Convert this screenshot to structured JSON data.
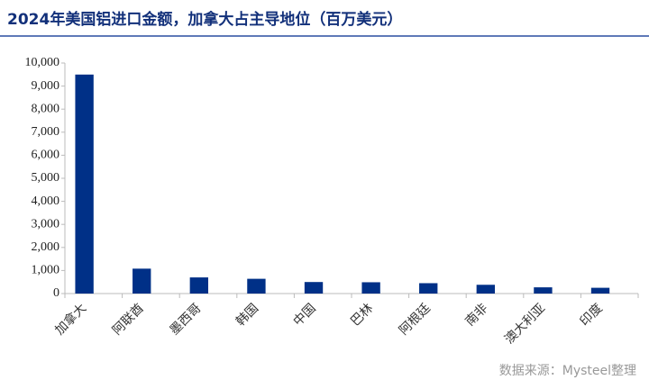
{
  "chart_data": {
    "type": "bar",
    "title": "2024年美国铝进口金额，加拿大占主导地位（百万美元）",
    "source": "数据来源：Mysteel整理",
    "categories": [
      "加拿大",
      "阿联酋",
      "墨西哥",
      "韩国",
      "中国",
      "巴林",
      "阿根廷",
      "南非",
      "澳大利亚",
      "印度"
    ],
    "values": [
      9500,
      1080,
      700,
      640,
      500,
      490,
      450,
      380,
      270,
      250
    ],
    "color": "#003087",
    "ylim": [
      0,
      10000
    ],
    "yticks": [
      0,
      {
        "value": 1000,
        "label": "1,000"
      },
      {
        "value": 2000,
        "label": "2,000"
      },
      {
        "value": 3000,
        "label": "3,000"
      },
      {
        "value": 4000,
        "label": "4,000"
      },
      {
        "value": 5000,
        "label": "5,000"
      },
      {
        "value": 6000,
        "label": "6,000"
      },
      {
        "value": 7000,
        "label": "7,000"
      },
      {
        "value": 8000,
        "label": "8,000"
      },
      {
        "value": 9000,
        "label": "9,000"
      },
      {
        "value": 10000,
        "label": "10,000"
      }
    ],
    "grid": false
  }
}
